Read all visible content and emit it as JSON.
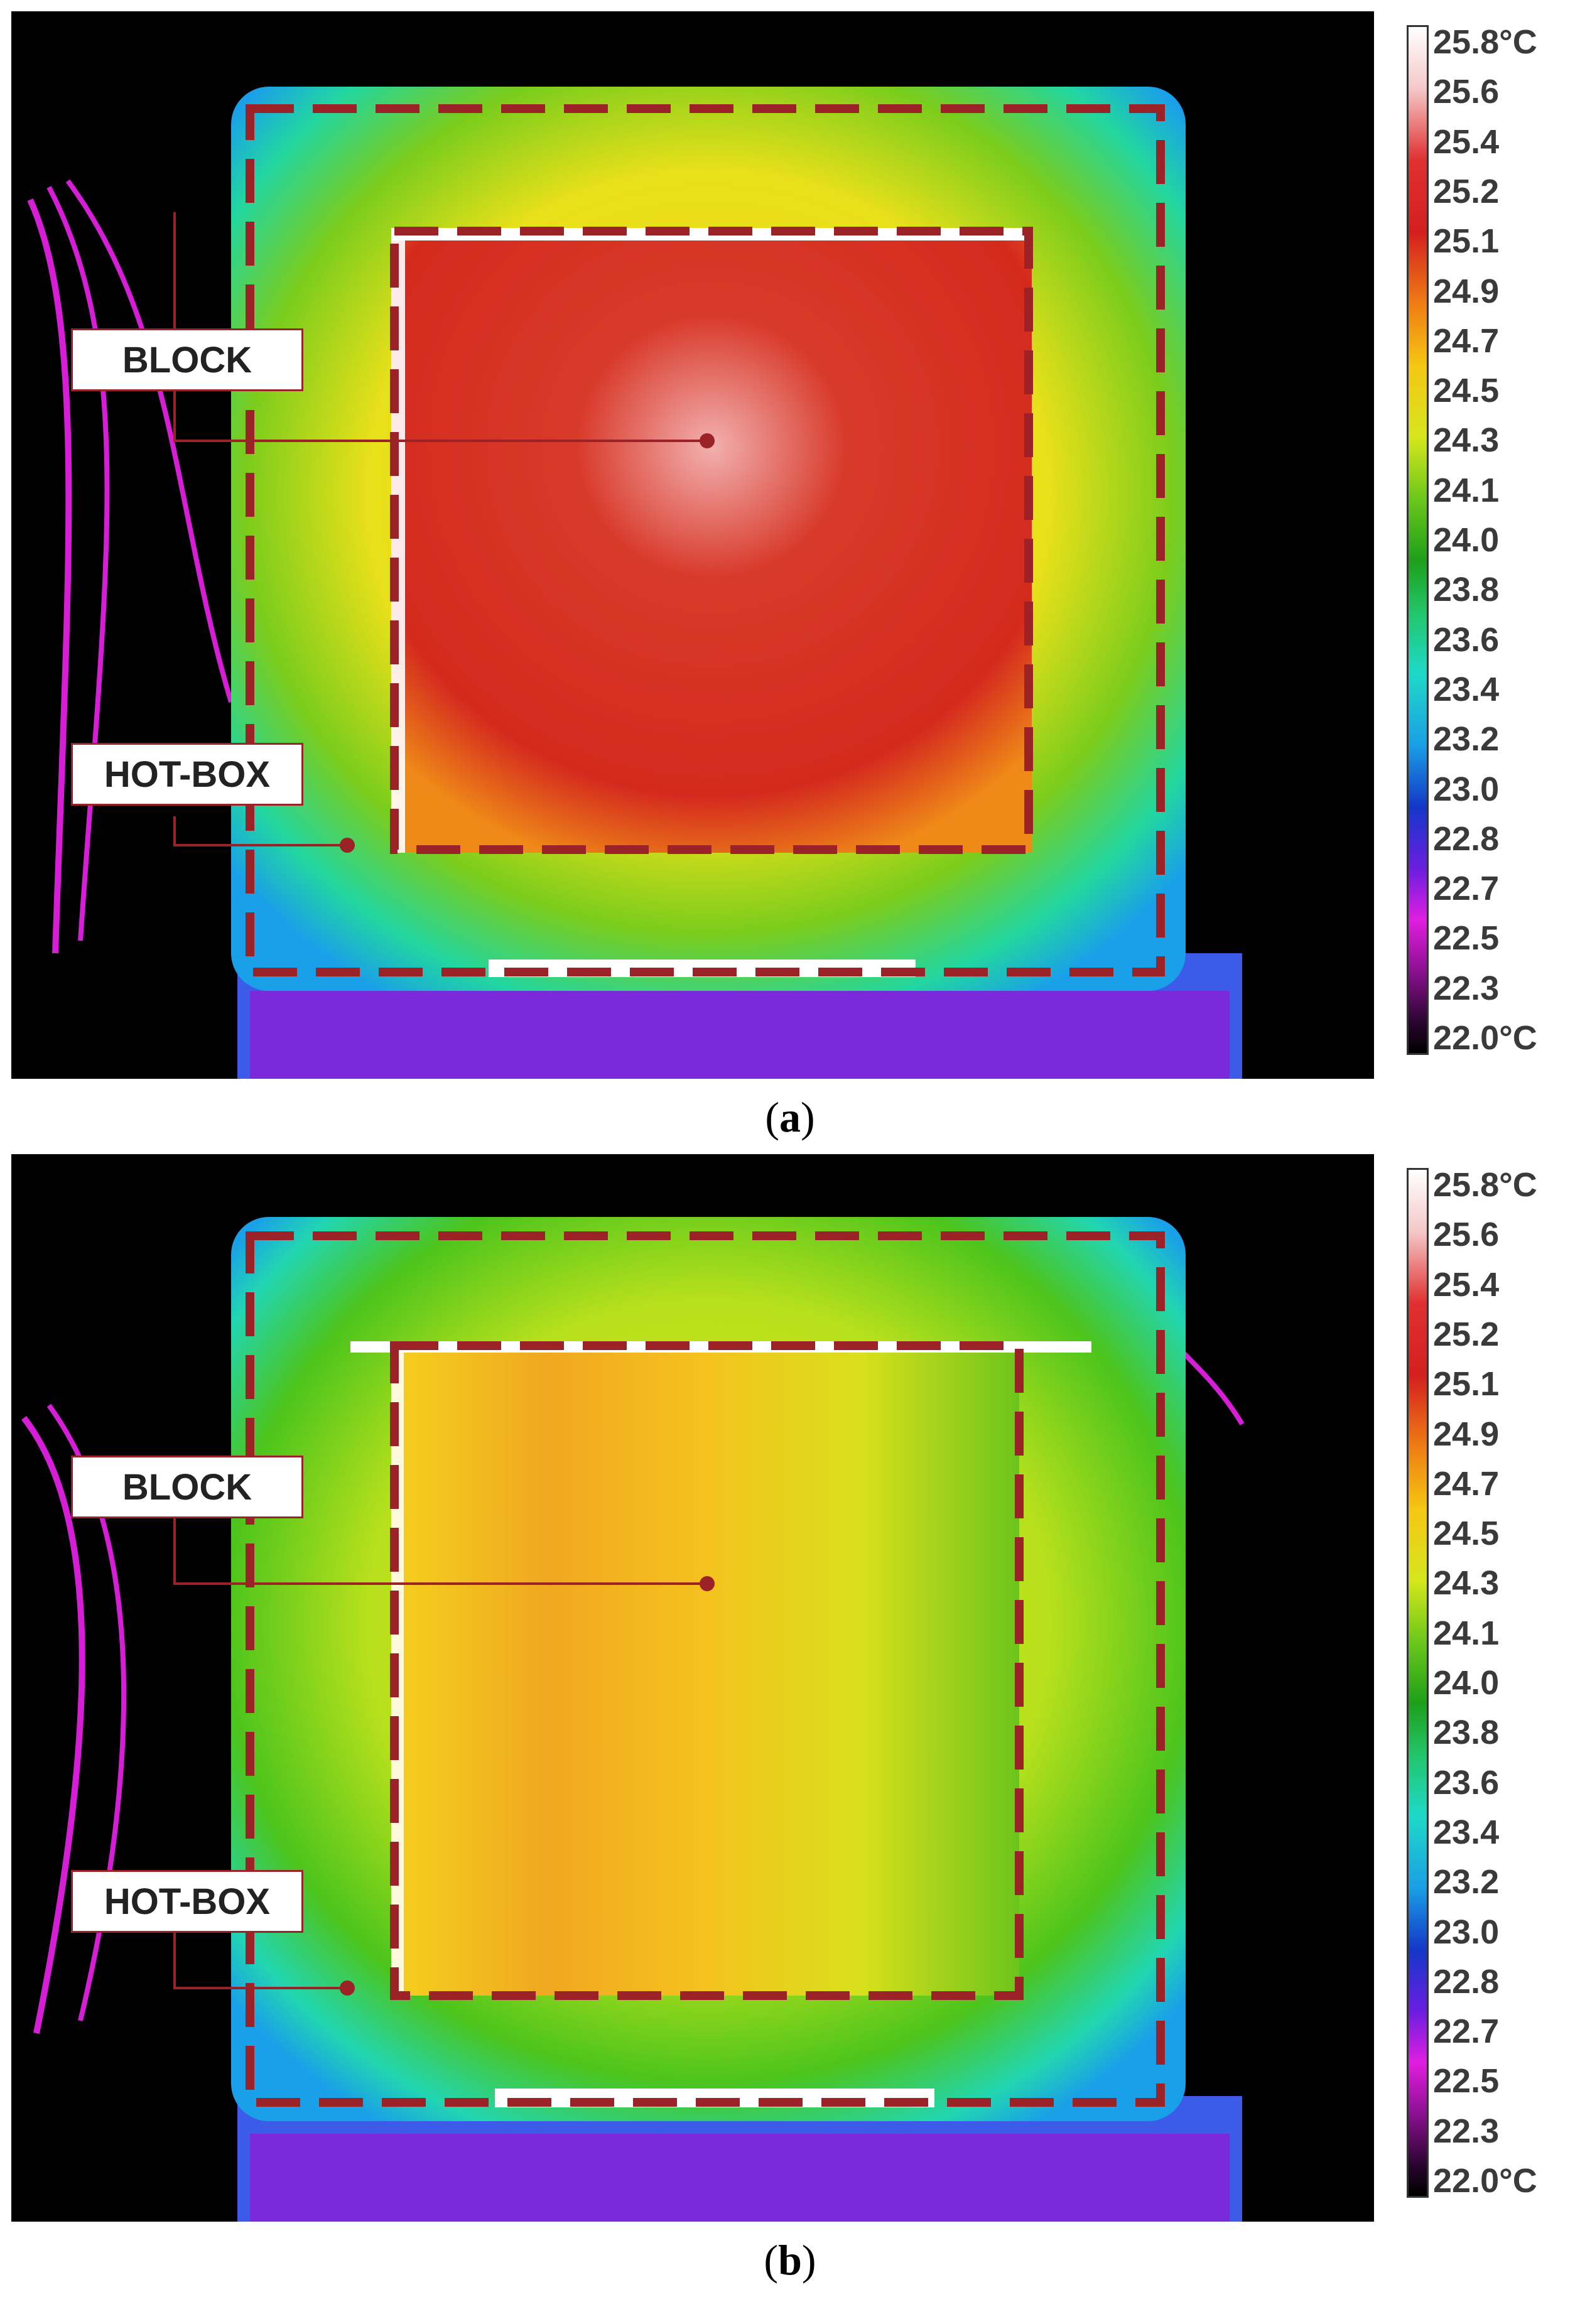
{
  "panels": [
    {
      "id": "a",
      "caption_open": "(",
      "caption_letter": "a",
      "caption_close": ")",
      "labels": {
        "block": "BLOCK",
        "hot_box": "HOT-BOX"
      },
      "scale_ticks": [
        "25.8°C",
        "25.6",
        "25.4",
        "25.2",
        "25.1",
        "24.9",
        "24.7",
        "24.5",
        "24.3",
        "24.1",
        "24.0",
        "23.8",
        "23.6",
        "23.4",
        "23.2",
        "23.0",
        "22.8",
        "22.7",
        "22.5",
        "22.3",
        "22.0°C"
      ],
      "block_fill": "#d42a1e",
      "block_hot": "#f0a0a0",
      "surround": "#f5d21a",
      "outer": "#2ee06a"
    },
    {
      "id": "b",
      "caption_open": "(",
      "caption_letter": "b",
      "caption_close": ")",
      "labels": {
        "block": "BLOCK",
        "hot_box": "HOT-BOX"
      },
      "scale_ticks": [
        "25.8°C",
        "25.6",
        "25.4",
        "25.2",
        "25.1",
        "24.9",
        "24.7",
        "24.5",
        "24.3",
        "24.1",
        "24.0",
        "23.8",
        "23.6",
        "23.4",
        "23.2",
        "23.0",
        "22.8",
        "22.7",
        "22.5",
        "22.3",
        "22.0°C"
      ],
      "block_fill": "#f5c21e",
      "block_hot": "#f09a20",
      "surround": "#b8e01c",
      "outer": "#2ee06a"
    }
  ],
  "colors": {
    "dash_line": "#9b2226",
    "label_border": "#9b2226"
  }
}
